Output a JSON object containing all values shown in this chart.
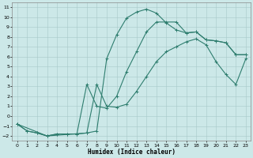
{
  "xlabel": "Humidex (Indice chaleur)",
  "bg_color": "#cce8e8",
  "grid_color": "#b0c8c8",
  "line_color": "#2e7d6e",
  "xlim": [
    -0.5,
    23.5
  ],
  "ylim": [
    -2.5,
    11.5
  ],
  "xticks": [
    0,
    1,
    2,
    3,
    4,
    5,
    6,
    7,
    8,
    9,
    10,
    11,
    12,
    13,
    14,
    15,
    16,
    17,
    18,
    19,
    20,
    21,
    22,
    23
  ],
  "yticks": [
    -2,
    -1,
    0,
    1,
    2,
    3,
    4,
    5,
    6,
    7,
    8,
    9,
    10,
    11
  ],
  "line1_x": [
    0,
    1,
    2,
    3,
    4,
    5,
    6,
    7,
    8,
    9,
    10,
    11,
    12,
    13,
    14,
    15,
    16,
    17,
    18,
    19,
    20,
    21,
    22,
    23
  ],
  "line1_y": [
    -0.8,
    -1.5,
    -1.7,
    -2.0,
    -1.8,
    -1.8,
    -1.8,
    -1.7,
    -1.5,
    5.8,
    8.2,
    9.9,
    10.5,
    10.8,
    10.4,
    9.4,
    8.7,
    8.4,
    8.5,
    7.7,
    7.6,
    7.4,
    6.2,
    6.2
  ],
  "line2_x": [
    0,
    1,
    2,
    3,
    4,
    5,
    6,
    7,
    8,
    9,
    10,
    11,
    12,
    13,
    14,
    15,
    16,
    17,
    18,
    19,
    20,
    21,
    22,
    23
  ],
  "line2_y": [
    -0.8,
    -1.5,
    -1.7,
    -2.0,
    -1.8,
    -1.8,
    -1.8,
    3.2,
    1.0,
    0.8,
    2.0,
    4.5,
    6.5,
    8.5,
    9.5,
    9.5,
    9.5,
    8.4,
    8.5,
    7.7,
    7.6,
    7.4,
    6.2,
    6.2
  ],
  "line3_x": [
    0,
    3,
    7,
    8,
    9,
    10,
    11,
    12,
    13,
    14,
    15,
    16,
    17,
    18,
    19,
    20,
    21,
    22,
    23
  ],
  "line3_y": [
    -0.8,
    -2.0,
    -1.7,
    3.2,
    1.0,
    0.9,
    1.2,
    2.5,
    4.0,
    5.5,
    6.5,
    7.0,
    7.5,
    7.8,
    7.2,
    5.5,
    4.2,
    3.2,
    5.8
  ]
}
